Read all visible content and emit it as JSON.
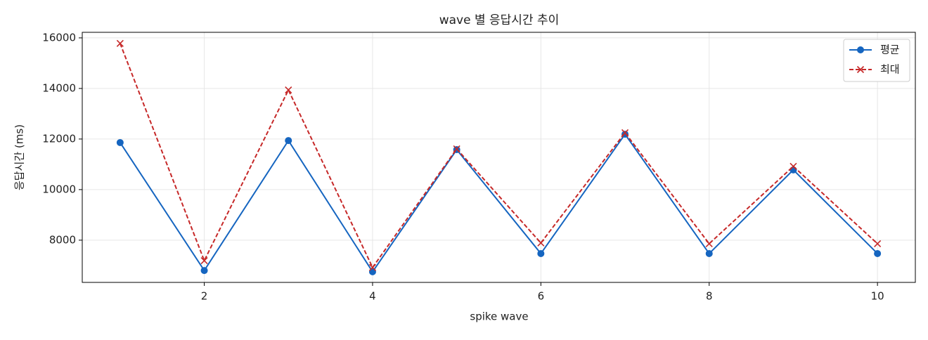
{
  "chart_data": {
    "type": "line",
    "title": "wave 별 응답시간 추이",
    "xlabel": "spike wave",
    "ylabel": "응답시간 (ms)",
    "x": [
      1,
      2,
      3,
      4,
      5,
      6,
      7,
      8,
      9,
      10
    ],
    "series": [
      {
        "name": "평균",
        "color": "#1565c0",
        "marker": "o",
        "linestyle": "solid",
        "values": [
          11860,
          6800,
          11940,
          6750,
          11580,
          7470,
          12190,
          7470,
          10780,
          7470
        ]
      },
      {
        "name": "최대",
        "color": "#c62828",
        "marker": "x",
        "linestyle": "dashed",
        "values": [
          15780,
          7190,
          13940,
          6920,
          11610,
          7890,
          12250,
          7860,
          10920,
          7860
        ]
      }
    ],
    "xlim": [
      0.55,
      10.45
    ],
    "xticks": [
      2,
      4,
      6,
      8,
      10
    ],
    "ylim": [
      6330,
      16220
    ],
    "yticks": [
      8000,
      10000,
      12000,
      14000,
      16000
    ],
    "grid": true,
    "legend": "upper right"
  }
}
